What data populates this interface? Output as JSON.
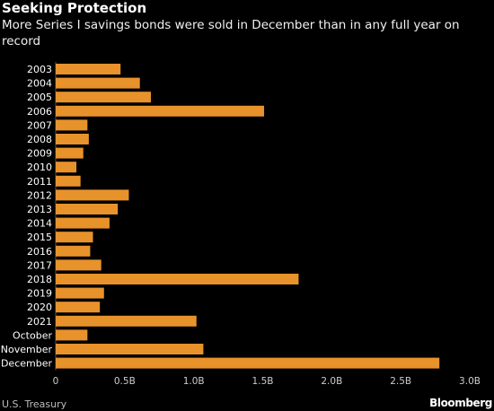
{
  "header": {
    "title": "Seeking Protection",
    "subtitle": "More Series I savings bonds were sold in December than in any full year on record"
  },
  "footer": {
    "source": "U.S. Treasury",
    "brand": "Bloomberg"
  },
  "colors": {
    "bar": "#e8922c",
    "background": "#000000",
    "text": "#ffffff",
    "axis_tick": "#cccccc"
  },
  "chart_data": {
    "type": "bar",
    "orientation": "horizontal",
    "title": "Seeking Protection",
    "subtitle": "More Series I savings bonds were sold in December than in any full year on record",
    "categories": [
      "2003",
      "2004",
      "2005",
      "2006",
      "2007",
      "2008",
      "2009",
      "2010",
      "2011",
      "2012",
      "2013",
      "2014",
      "2015",
      "2016",
      "2017",
      "2018",
      "2019",
      "2020",
      "2021",
      "October",
      "November",
      "December"
    ],
    "values": [
      0.47,
      0.61,
      0.69,
      1.51,
      0.23,
      0.24,
      0.2,
      0.15,
      0.18,
      0.53,
      0.45,
      0.39,
      0.27,
      0.25,
      0.33,
      1.76,
      0.35,
      0.32,
      1.02,
      0.23,
      1.07,
      2.78
    ],
    "xlim": [
      0,
      3.0
    ],
    "xticks": [
      {
        "value": 0,
        "label": "0"
      },
      {
        "value": 0.5,
        "label": "0.5B"
      },
      {
        "value": 1.0,
        "label": "1.0B"
      },
      {
        "value": 1.5,
        "label": "1.5B"
      },
      {
        "value": 2.0,
        "label": "2.0B"
      },
      {
        "value": 2.5,
        "label": "2.5B"
      },
      {
        "value": 3.0,
        "label": "3.0B"
      }
    ],
    "xlabel": "",
    "ylabel": "",
    "grid": false,
    "legend": "none"
  }
}
